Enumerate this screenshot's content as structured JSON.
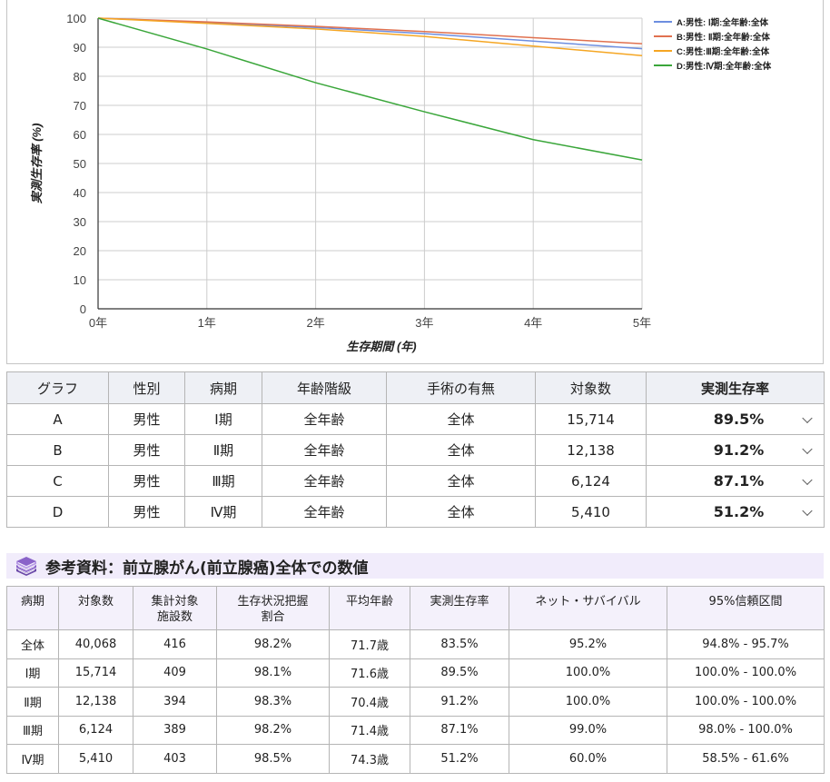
{
  "chart_data": {
    "type": "line",
    "title": "",
    "xlabel": "生存期間 (年)",
    "ylabel": "実測生存率 (%)",
    "x": [
      "0年",
      "1年",
      "2年",
      "3年",
      "4年",
      "5年"
    ],
    "yticks": [
      0,
      10,
      20,
      30,
      40,
      50,
      60,
      70,
      80,
      90,
      100
    ],
    "ylim": [
      0,
      100
    ],
    "grid": true,
    "legend_position": "right",
    "series": [
      {
        "name": "A:男性: Ⅰ期:全年齢:全体",
        "color": "#6d8ee0",
        "values": [
          100,
          98.5,
          96.8,
          94.7,
          92.1,
          89.5
        ]
      },
      {
        "name": "B:男性: Ⅱ期:全年齢:全体",
        "color": "#e0714f",
        "values": [
          100,
          98.7,
          97.2,
          95.4,
          93.3,
          91.2
        ]
      },
      {
        "name": "C:男性:Ⅲ期:全年齢:全体",
        "color": "#f5a623",
        "values": [
          100,
          98.2,
          96.3,
          93.7,
          90.4,
          87.1
        ]
      },
      {
        "name": "D:男性:Ⅳ期:全年齢:全体",
        "color": "#3aa63a",
        "values": [
          100,
          89.4,
          77.8,
          67.8,
          58.2,
          51.2
        ]
      }
    ]
  },
  "chart": {
    "ylabel": "実測生存率 (%)",
    "xlabel": "生存期間 (年)",
    "legend": [
      "A:男性: Ⅰ期:全年齢:全体",
      "B:男性: Ⅱ期:全年齢:全体",
      "C:男性:Ⅲ期:全年齢:全体",
      "D:男性:Ⅳ期:全年齢:全体"
    ]
  },
  "main_table": {
    "headers": [
      "グラフ",
      "性別",
      "病期",
      "年齢階級",
      "手術の有無",
      "対象数",
      "実測生存率"
    ],
    "rows": [
      {
        "graph": "A",
        "sex": "男性",
        "stage": "Ⅰ期",
        "age": "全年齢",
        "surgery": "全体",
        "count": "15,714",
        "rate": "89.5%"
      },
      {
        "graph": "B",
        "sex": "男性",
        "stage": "Ⅱ期",
        "age": "全年齢",
        "surgery": "全体",
        "count": "12,138",
        "rate": "91.2%"
      },
      {
        "graph": "C",
        "sex": "男性",
        "stage": "Ⅲ期",
        "age": "全年齢",
        "surgery": "全体",
        "count": "6,124",
        "rate": "87.1%"
      },
      {
        "graph": "D",
        "sex": "男性",
        "stage": "Ⅳ期",
        "age": "全年齢",
        "surgery": "全体",
        "count": "5,410",
        "rate": "51.2%"
      }
    ]
  },
  "reference": {
    "title": "参考資料：前立腺がん(前立腺癌)全体での数値",
    "icon": "book-stack-icon",
    "headers": [
      "病期",
      "対象数",
      "集計対象\n施設数",
      "生存状況把握\n割合",
      "平均年齢",
      "実測生存率",
      "ネット・サバイバル",
      "95%信頼区間"
    ],
    "header_lines": [
      [
        "病期"
      ],
      [
        "対象数"
      ],
      [
        "集計対象",
        "施設数"
      ],
      [
        "生存状況把握",
        "割合"
      ],
      [
        "平均年齢"
      ],
      [
        "実測生存率"
      ],
      [
        "ネット・サバイバル"
      ],
      [
        "95%信頼区間"
      ]
    ],
    "rows": [
      [
        "全体",
        "40,068",
        "416",
        "98.2%",
        "71.7歳",
        "83.5%",
        "95.2%",
        "94.8% - 95.7%"
      ],
      [
        "Ⅰ期",
        "15,714",
        "409",
        "98.1%",
        "71.6歳",
        "89.5%",
        "100.0%",
        "100.0% - 100.0%"
      ],
      [
        "Ⅱ期",
        "12,138",
        "394",
        "98.3%",
        "70.4歳",
        "91.2%",
        "100.0%",
        "100.0% - 100.0%"
      ],
      [
        "Ⅲ期",
        "6,124",
        "389",
        "98.2%",
        "71.4歳",
        "87.1%",
        "99.0%",
        "98.0% - 100.0%"
      ],
      [
        "Ⅳ期",
        "5,410",
        "403",
        "98.5%",
        "74.3歳",
        "51.2%",
        "60.0%",
        "58.5% - 61.6%"
      ]
    ]
  },
  "colors": {
    "header_bg": "#eef0f5",
    "ref_header_bg": "#f1ecfb",
    "icon_purple": "#8a63c9",
    "grid": "#cccccc"
  }
}
